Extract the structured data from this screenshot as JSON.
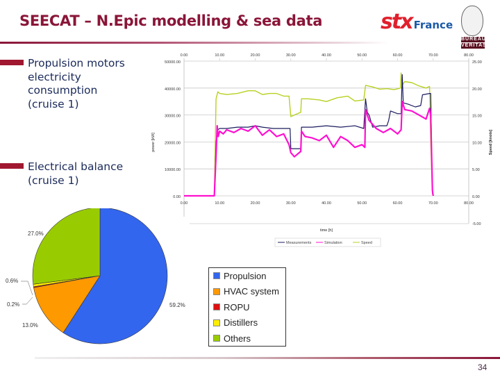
{
  "slide": {
    "title": "SEECAT – N.Epic modelling & sea data",
    "page_number": "34",
    "logos": {
      "stx": "stx",
      "stx_suffix": "France",
      "bv_top": "BUREAU",
      "bv_bottom": "VERITAS"
    },
    "bullets": [
      {
        "lines": [
          "Propulsion motors",
          "electricity",
          "consumption",
          "(cruise 1)"
        ]
      },
      {
        "lines": [
          "Electrical balance",
          "(cruise 1)"
        ]
      }
    ],
    "colors": {
      "accent": "#8a1538",
      "bullet": "#a01830",
      "text": "#1a2a5a"
    }
  },
  "chart_data": [
    {
      "type": "line",
      "title": "",
      "xlabel": "time [h]",
      "ylabel": "power [kW]",
      "y2label": "Speed [knots]",
      "xlim": [
        0,
        80
      ],
      "ylim": [
        0,
        50000
      ],
      "y2lim": [
        -5,
        25
      ],
      "x_ticks": [
        "0.00",
        "10.00",
        "20.00",
        "30.00",
        "40.00",
        "50.00",
        "60.00",
        "70.00",
        "80.00"
      ],
      "y_ticks": [
        "50000.00",
        "40000.00",
        "30000.00",
        "20000.00",
        "10000.00",
        "0.00"
      ],
      "y2_ticks": [
        "25.00",
        "20.00",
        "15.00",
        "10.00",
        "5.00",
        "0.00",
        "-5.00"
      ],
      "grid": true,
      "legend_position": "bottom",
      "legend": [
        "Measurements",
        "Simulation",
        "Speed"
      ],
      "series": [
        {
          "name": "Measurements",
          "axis": "left",
          "color": "#1a1a5e",
          "x": [
            0,
            8.5,
            9.0,
            9.5,
            10,
            12,
            15,
            18,
            20,
            22,
            25,
            28,
            29.8,
            30,
            32.8,
            33,
            36,
            40,
            44,
            48,
            50.5,
            51,
            51.5,
            52,
            53,
            55,
            57,
            57.5,
            58,
            60,
            61,
            61.3,
            61.6,
            63,
            65,
            66.5,
            67,
            69,
            69.3,
            69.8,
            70
          ],
          "y": [
            0,
            0,
            20000,
            24500,
            25000,
            25000,
            25500,
            25500,
            26000,
            25500,
            25000,
            25000,
            25000,
            17500,
            17500,
            25500,
            25500,
            26000,
            25500,
            26000,
            25000,
            36000,
            31000,
            30000,
            25500,
            26000,
            26000,
            28000,
            31500,
            30500,
            30500,
            45000,
            34500,
            34000,
            33000,
            33500,
            37500,
            38000,
            38000,
            1000,
            0
          ]
        },
        {
          "name": "Simulation",
          "axis": "left",
          "color": "#ff10d0",
          "x": [
            0,
            8.5,
            9.0,
            9.3,
            9.6,
            10,
            11,
            12,
            14,
            16,
            18,
            20,
            22,
            24,
            26,
            28,
            29.5,
            30,
            31,
            32.8,
            33,
            34,
            36,
            38,
            40,
            42,
            44,
            46,
            48,
            50,
            50.8,
            51,
            52,
            54,
            56,
            58,
            60,
            61,
            61.3,
            62,
            64,
            66,
            68,
            69,
            69.3,
            69.8,
            70
          ],
          "y": [
            0,
            0,
            15000,
            26000,
            22000,
            24000,
            23000,
            24500,
            23500,
            25000,
            24000,
            26000,
            22500,
            24500,
            22000,
            23000,
            19000,
            16000,
            14500,
            16500,
            24000,
            22000,
            21500,
            20500,
            22500,
            18000,
            22000,
            20500,
            18000,
            19000,
            18000,
            32000,
            28000,
            25000,
            23500,
            25000,
            23000,
            24500,
            35000,
            32000,
            31500,
            30000,
            28500,
            32500,
            30000,
            2000,
            0
          ]
        },
        {
          "name": "Speed",
          "axis": "right",
          "color": "#b8d020",
          "x": [
            0,
            8.5,
            9.0,
            9.5,
            10,
            12,
            15,
            18,
            20,
            22,
            24,
            26,
            28,
            29.5,
            30,
            31,
            32.8,
            33,
            35,
            38,
            40,
            43,
            46,
            48,
            50.5,
            51,
            53,
            55,
            57,
            59,
            60.8,
            61,
            61.3,
            62,
            64,
            66,
            68,
            69,
            69.3,
            69.8,
            70
          ],
          "y": [
            0,
            0,
            18000,
            19300,
            19000,
            18800,
            19000,
            19500,
            19500,
            18800,
            19000,
            19000,
            18500,
            18500,
            14700,
            15000,
            15500,
            18000,
            18000,
            17800,
            17500,
            18200,
            18500,
            17600,
            17800,
            20500,
            20200,
            19800,
            19900,
            19700,
            20000,
            22800,
            20500,
            21200,
            21000,
            20400,
            20000,
            20300,
            10000,
            500,
            0
          ]
        }
      ]
    },
    {
      "type": "pie",
      "title": "",
      "categories": [
        "Propulsion",
        "HVAC system",
        "ROPU",
        "Distillers",
        "Others"
      ],
      "values": [
        59.2,
        13.0,
        0.2,
        0.6,
        27.0
      ],
      "labels": [
        "59.2%",
        "13.0%",
        "0.2%",
        "0.6%",
        "27.0%"
      ],
      "colors": [
        "#3366ee",
        "#ff9900",
        "#dd1111",
        "#ffee00",
        "#99cc00"
      ],
      "legend_position": "right"
    }
  ]
}
